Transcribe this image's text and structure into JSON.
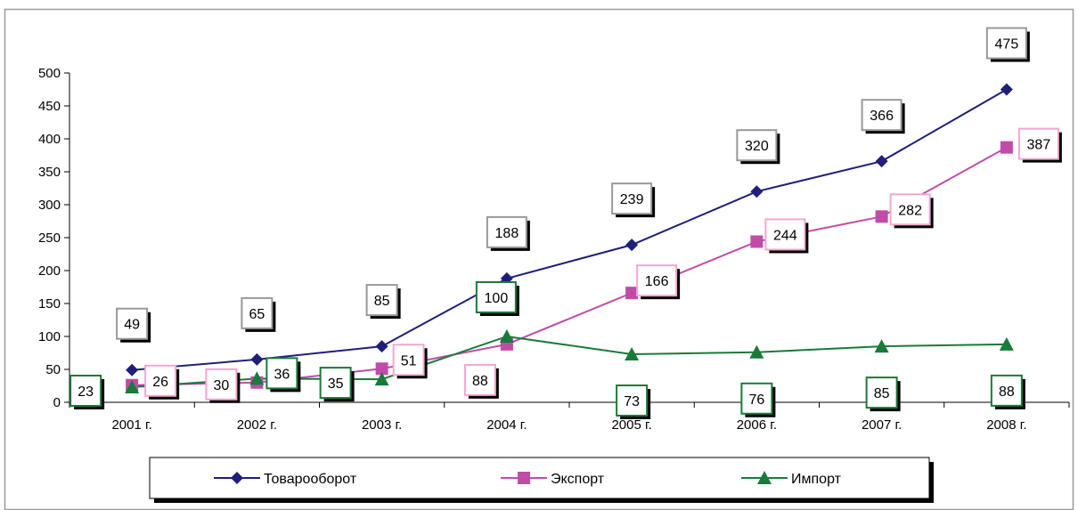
{
  "chart_data": {
    "type": "line",
    "title": "",
    "xlabel": "",
    "ylabel": "",
    "categories": [
      "2001 г.",
      "2002 г.",
      "2003 г.",
      "2004 г.",
      "2005 г.",
      "2006 г.",
      "2007 г.",
      "2008 г."
    ],
    "ylim": [
      0,
      500
    ],
    "yticks": [
      0,
      50,
      100,
      150,
      200,
      250,
      300,
      350,
      400,
      450,
      500
    ],
    "grid": false,
    "legend_position": "bottom",
    "series": [
      {
        "name": "Товарооборот",
        "color": "#1f1f7a",
        "label_border": "#999999",
        "marker": "diamond",
        "values": [
          49,
          65,
          85,
          188,
          239,
          320,
          366,
          475
        ]
      },
      {
        "name": "Экспорт",
        "color": "#c04ca8",
        "label_border": "#f2a6cf",
        "marker": "square",
        "values": [
          26,
          30,
          51,
          88,
          166,
          244,
          282,
          387
        ]
      },
      {
        "name": "Импорт",
        "color": "#1a7a3a",
        "label_border": "#1a7a3a",
        "marker": "triangle",
        "values": [
          23,
          36,
          35,
          100,
          73,
          76,
          85,
          88
        ]
      }
    ]
  }
}
